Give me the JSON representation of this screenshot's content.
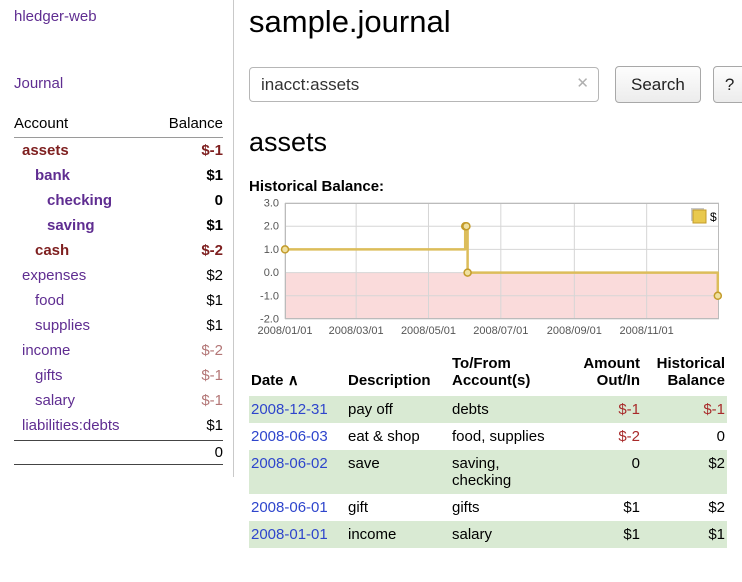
{
  "app_title": "hledger-web",
  "colors": {
    "link_purple": "#5f2d91",
    "negative_dark_red": "#7e1f1f",
    "negative_muted_red": "#b37676",
    "register_negative_red": "#a82a2a",
    "date_link_blue": "#2e45cc",
    "row_green": "#d9ead3",
    "chart_negative_pink": "#fadbdb",
    "chart_line_gold": "#dcbd5a"
  },
  "sidebar": {
    "journal_link": "Journal",
    "headers": {
      "account": "Account",
      "balance": "Balance"
    },
    "accounts": [
      {
        "name": "assets",
        "balance": "$-1"
      },
      {
        "name": "bank",
        "balance": "$1"
      },
      {
        "name": "checking",
        "balance": "0"
      },
      {
        "name": "saving",
        "balance": "$1"
      },
      {
        "name": "cash",
        "balance": "$-2"
      },
      {
        "name": "expenses",
        "balance": "$2"
      },
      {
        "name": "food",
        "balance": "$1"
      },
      {
        "name": "supplies",
        "balance": "$1"
      },
      {
        "name": "income",
        "balance": "$-2"
      },
      {
        "name": "gifts",
        "balance": "$-1"
      },
      {
        "name": "salary",
        "balance": "$-1"
      },
      {
        "name": "liabilities:debts",
        "balance": "$1"
      }
    ],
    "total": "0"
  },
  "main": {
    "title": "sample.journal",
    "search": {
      "value": "inacct:assets",
      "clear_icon": "✕",
      "button": "Search",
      "help_button": "?"
    },
    "account_heading": "assets",
    "chart_label": "Historical Balance:",
    "register": {
      "headers": {
        "date": "Date",
        "sort": "∧",
        "description": "Description",
        "tofrom1": "To/From",
        "tofrom2": "Account(s)",
        "amount1": "Amount",
        "amount2": "Out/In",
        "hist1": "Historical",
        "hist2": "Balance"
      },
      "rows": [
        {
          "date": "2008-12-31",
          "description": "pay off",
          "accounts": "debts",
          "amount": "$-1",
          "balance": "$-1"
        },
        {
          "date": "2008-06-03",
          "description": "eat & shop",
          "accounts": "food, supplies",
          "amount": "$-2",
          "balance": "0"
        },
        {
          "date": "2008-06-02",
          "description": "save",
          "accounts": "saving,\nchecking",
          "amount": "0",
          "balance": "$2"
        },
        {
          "date": "2008-06-01",
          "description": "gift",
          "accounts": "gifts",
          "amount": "$1",
          "balance": "$2"
        },
        {
          "date": "2008-01-01",
          "description": "income",
          "accounts": "salary",
          "amount": "$1",
          "balance": "$1"
        }
      ]
    }
  },
  "chart_data": {
    "type": "line",
    "title": "Historical Balance",
    "step": true,
    "legend": [
      {
        "label": "$",
        "color": "#e9c94e"
      }
    ],
    "legend_position": "top-right",
    "grid": true,
    "ylim": [
      -2,
      3
    ],
    "y_ticks": [
      "3.0",
      "2.0",
      "1.0",
      "0.0",
      "-1.0",
      "-2.0"
    ],
    "x_domain": [
      "2008-01-01",
      "2009-01-01"
    ],
    "x_tick_labels": [
      "2008/01/01",
      "2008/03/01",
      "2008/05/01",
      "2008/07/01",
      "2008/09/01",
      "2008/11/01"
    ],
    "points": [
      {
        "date": "2008-01-01",
        "value": 1
      },
      {
        "date": "2008-06-01",
        "value": 2
      },
      {
        "date": "2008-06-02",
        "value": 2
      },
      {
        "date": "2008-06-03",
        "value": 0
      },
      {
        "date": "2008-12-31",
        "value": -1
      }
    ],
    "negative_region_fill": "#fadbdb",
    "line_color": "#dcbd5a",
    "marker_fill": "#efe0a0",
    "marker_stroke": "#c39b2a"
  }
}
